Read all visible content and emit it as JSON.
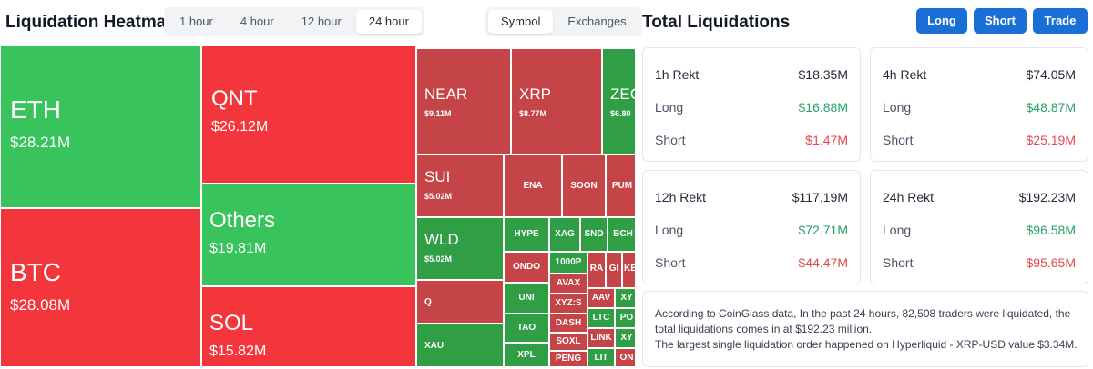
{
  "heatmap": {
    "title": "Liquidation Heatmap",
    "time_options": [
      {
        "label": "1 hour",
        "active": false
      },
      {
        "label": "4 hour",
        "active": false
      },
      {
        "label": "12 hour",
        "active": false
      },
      {
        "label": "24 hour",
        "active": true
      }
    ],
    "view_options": [
      {
        "label": "Symbol",
        "active": true
      },
      {
        "label": "Exchanges",
        "active": false
      }
    ],
    "tiles": {
      "eth": {
        "symbol": "ETH",
        "value": "$28.21M",
        "trend": "long"
      },
      "btc": {
        "symbol": "BTC",
        "value": "$28.08M",
        "trend": "short"
      },
      "qnt": {
        "symbol": "QNT",
        "value": "$26.12M",
        "trend": "short"
      },
      "others": {
        "symbol": "Others",
        "value": "$19.81M",
        "trend": "long"
      },
      "sol": {
        "symbol": "SOL",
        "value": "$15.82M",
        "trend": "short"
      },
      "near": {
        "symbol": "NEAR",
        "value": "$9.11M",
        "trend": "short"
      },
      "xrp": {
        "symbol": "XRP",
        "value": "$8.77M",
        "trend": "short"
      },
      "zec": {
        "symbol": "ZEC",
        "value": "$6.80",
        "trend": "long"
      },
      "sui": {
        "symbol": "SUI",
        "value": "$5.02M",
        "trend": "short"
      },
      "wld": {
        "symbol": "WLD",
        "value": "$5.02M",
        "trend": "long"
      },
      "q": {
        "symbol": "Q"
      },
      "xau": {
        "symbol": "XAU"
      },
      "ena": {
        "symbol": "ENA"
      },
      "soon": {
        "symbol": "SOON"
      },
      "pum": {
        "symbol": "PUM"
      },
      "hype": {
        "symbol": "HYPE"
      },
      "xag": {
        "symbol": "XAG"
      },
      "snd": {
        "symbol": "SND"
      },
      "bch": {
        "symbol": "BCH"
      },
      "ondo": {
        "symbol": "ONDO"
      },
      "p1000": {
        "symbol": "1000P"
      },
      "ra": {
        "symbol": "RA"
      },
      "gi": {
        "symbol": "GI"
      },
      "ke": {
        "symbol": "KE"
      },
      "uni": {
        "symbol": "UNI"
      },
      "avax": {
        "symbol": "AVAX"
      },
      "xyz": {
        "symbol": "XYZ:S"
      },
      "aav": {
        "symbol": "AAV"
      },
      "xy": {
        "symbol": "XY"
      },
      "tao": {
        "symbol": "TAO"
      },
      "dash": {
        "symbol": "DASH"
      },
      "ltc": {
        "symbol": "LTC"
      },
      "po": {
        "symbol": "PO"
      },
      "soxl": {
        "symbol": "SOXL"
      },
      "link": {
        "symbol": "LINK"
      },
      "xy2": {
        "symbol": "XY"
      },
      "xpl": {
        "symbol": "XPL"
      },
      "peng": {
        "symbol": "PENG"
      },
      "lit": {
        "symbol": "LIT"
      },
      "on": {
        "symbol": "ON"
      }
    }
  },
  "colors": {
    "long": "#39c35c",
    "short": "#f3363c",
    "long_dark": "#2f9e44",
    "short_dark": "#c44448",
    "accent": "#1a6fd6",
    "positive_text": "#26a269",
    "negative_text": "#e5484d"
  },
  "totals": {
    "title": "Total Liquidations",
    "buttons": {
      "long": "Long",
      "short": "Short",
      "trade": "Trade"
    },
    "cards": [
      {
        "period": "1h Rekt",
        "total": "$18.35M",
        "long_label": "Long",
        "long": "$16.88M",
        "short_label": "Short",
        "short": "$1.47M"
      },
      {
        "period": "4h Rekt",
        "total": "$74.05M",
        "long_label": "Long",
        "long": "$48.87M",
        "short_label": "Short",
        "short": "$25.19M"
      },
      {
        "period": "12h Rekt",
        "total": "$117.19M",
        "long_label": "Long",
        "long": "$72.71M",
        "short_label": "Short",
        "short": "$44.47M"
      },
      {
        "period": "24h Rekt",
        "total": "$192.23M",
        "long_label": "Long",
        "long": "$96.58M",
        "short_label": "Short",
        "short": "$95.65M"
      }
    ],
    "summary_line1": "According to CoinGlass data, In the past 24 hours, 82,508 traders were liquidated, the",
    "summary_line2": "total liquidations comes in at $192.23 million.",
    "summary_line3": "The largest single liquidation order happened on Hyperliquid - XRP-USD value $3.34M."
  }
}
